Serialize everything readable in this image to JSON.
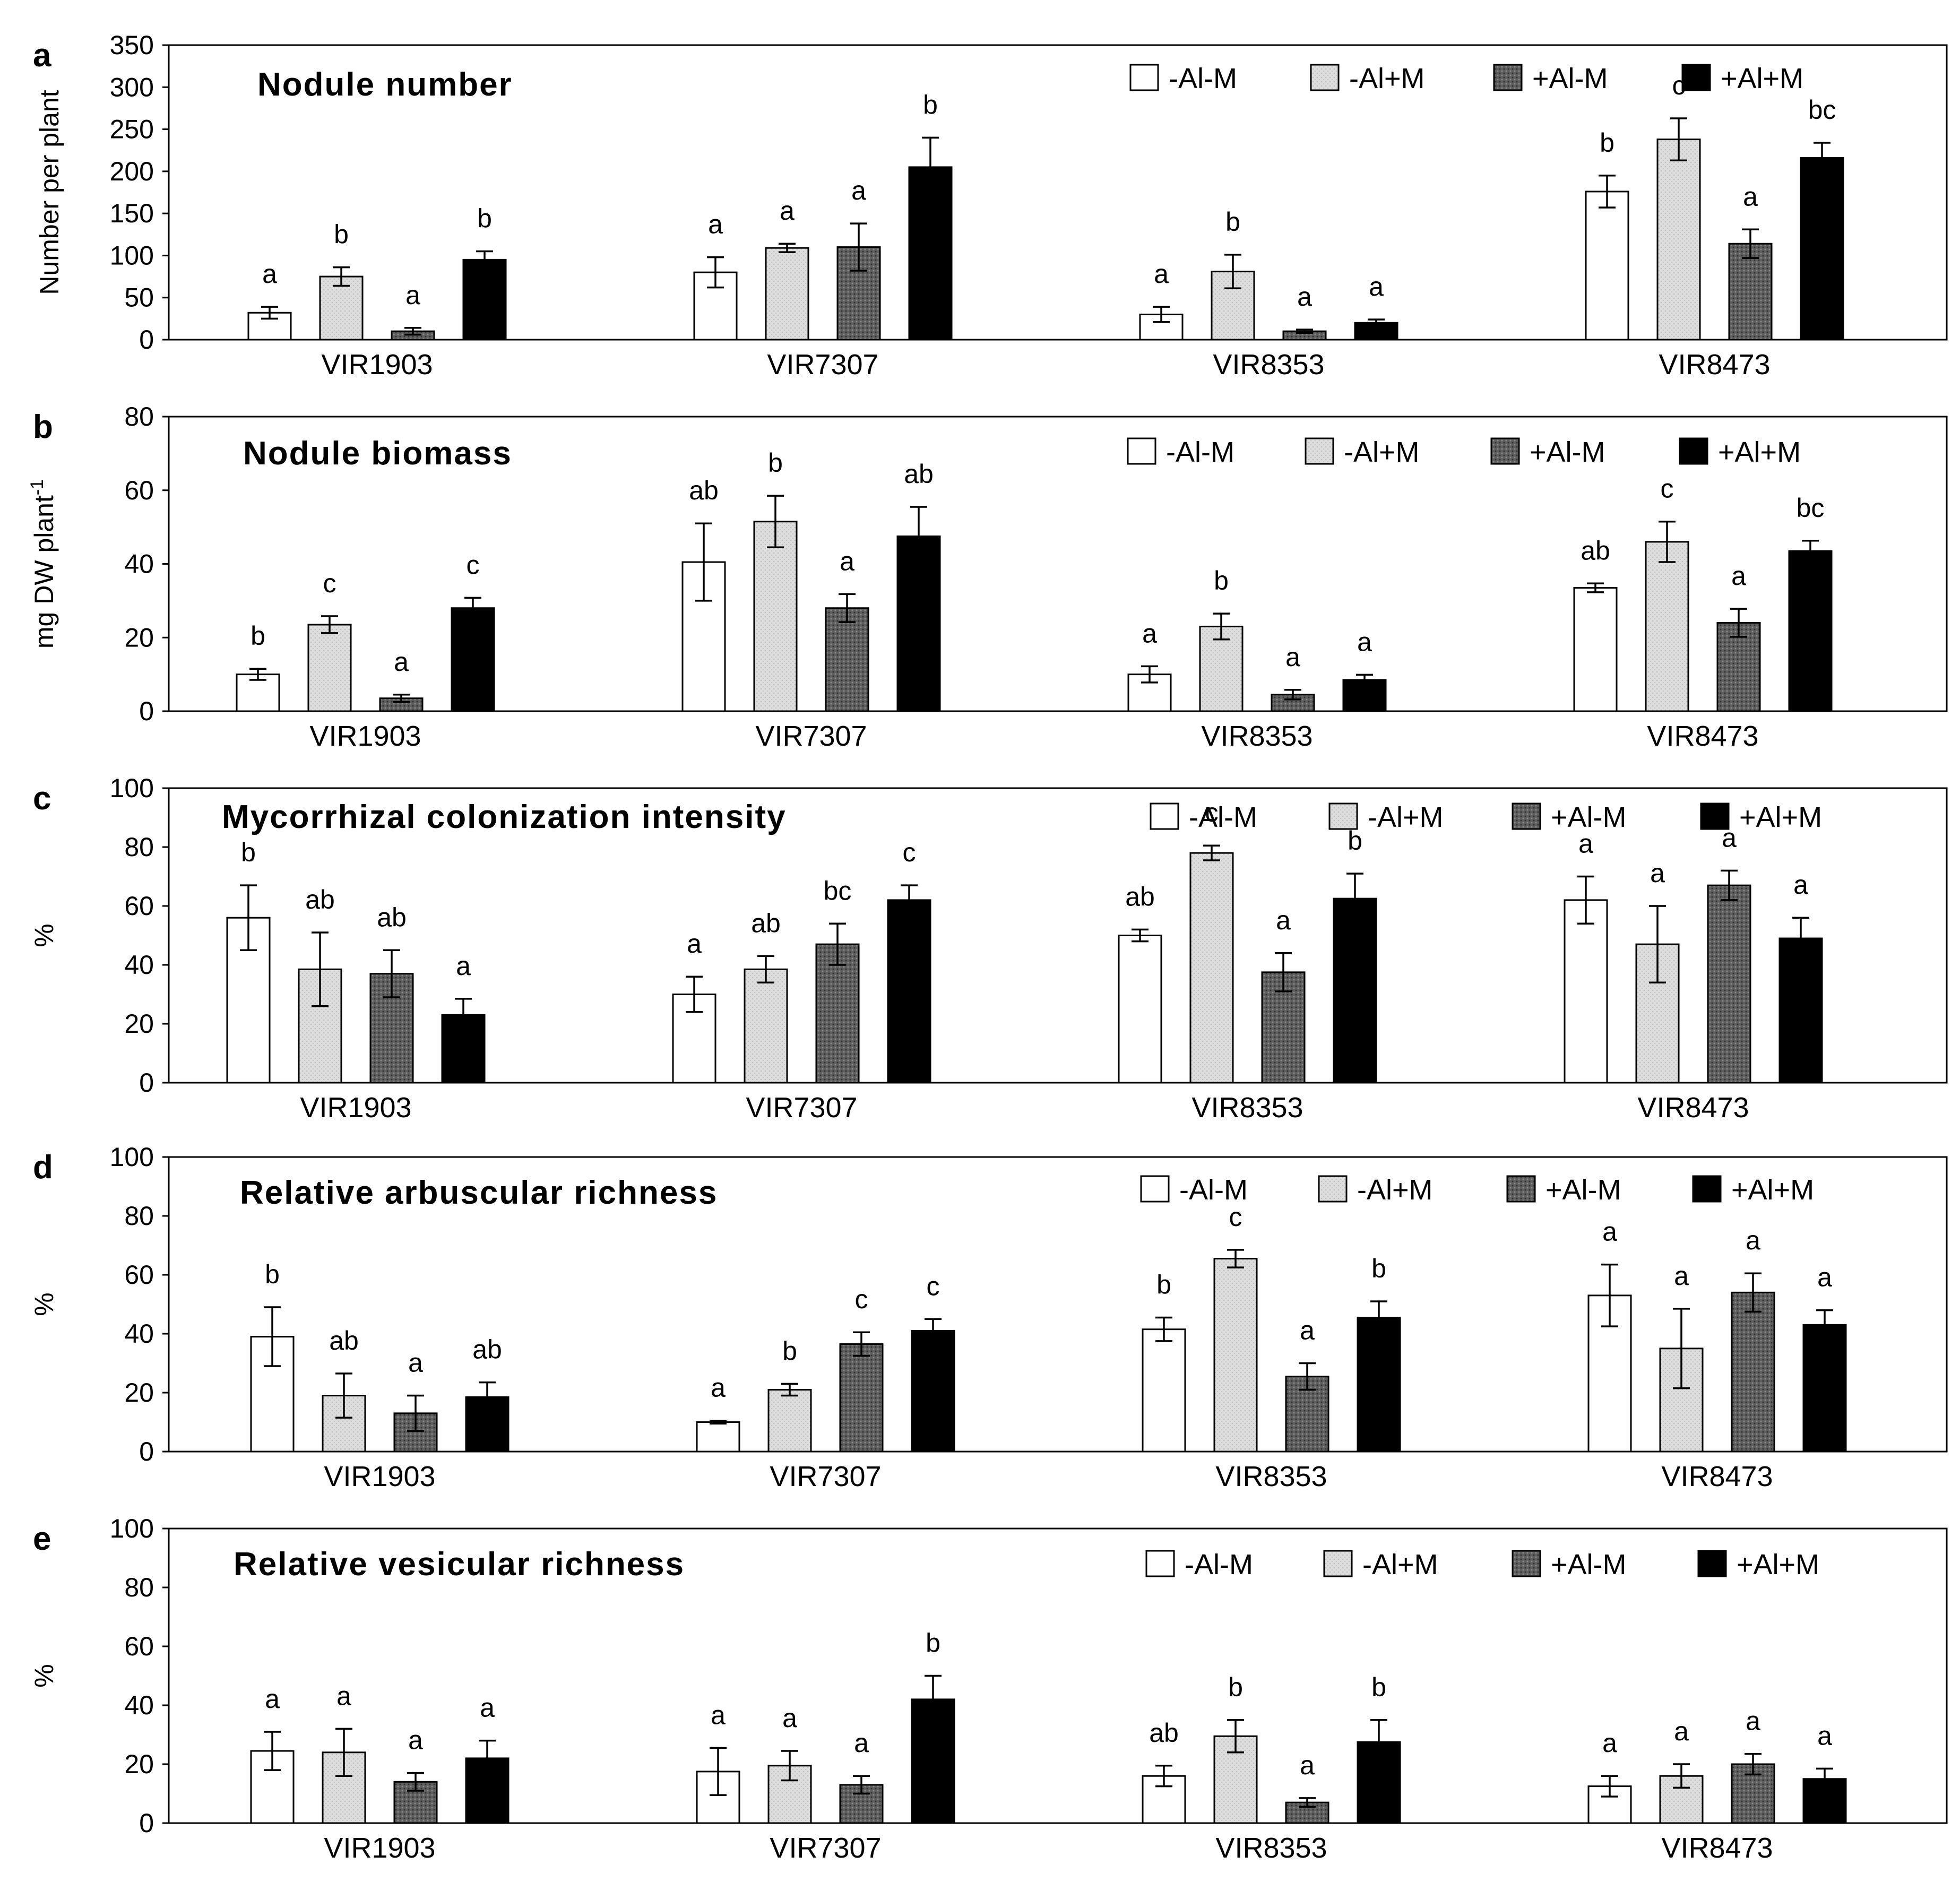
{
  "groups": [
    "VIR1903",
    "VIR7307",
    "VIR8353",
    "VIR8473"
  ],
  "legend": [
    "-Al-M",
    "-Al+M",
    "+Al-M",
    "+Al+M"
  ],
  "series_colors": [
    "#ffffff",
    "#dcdcdc",
    "#5a5a5a",
    "#000000"
  ],
  "chart_data": [
    {
      "type": "bar",
      "panel": "a",
      "title": "Nodule number",
      "ylabel": "Number per plant",
      "ylim": [
        0,
        350
      ],
      "yticks": [
        0,
        50,
        100,
        150,
        200,
        250,
        300,
        350
      ],
      "categories": [
        "VIR1903",
        "VIR7307",
        "VIR8353",
        "VIR8473"
      ],
      "series": [
        {
          "name": "-Al-M",
          "values": [
            32,
            80,
            30,
            176
          ],
          "errors": [
            7,
            18,
            9,
            19
          ],
          "letters": [
            "a",
            "a",
            "a",
            "b"
          ]
        },
        {
          "name": "-Al+M",
          "values": [
            75,
            109,
            81,
            238
          ],
          "errors": [
            11,
            5,
            20,
            25
          ],
          "letters": [
            "b",
            "a",
            "b",
            "c"
          ]
        },
        {
          "name": "+Al-M",
          "values": [
            10,
            110,
            10,
            114
          ],
          "errors": [
            4,
            28,
            2,
            17
          ],
          "letters": [
            "a",
            "a",
            "a",
            "a"
          ]
        },
        {
          "name": "+Al+M",
          "values": [
            95,
            205,
            20,
            216
          ],
          "errors": [
            10,
            35,
            4,
            18
          ],
          "letters": [
            "b",
            "b",
            "a",
            "bc"
          ]
        }
      ]
    },
    {
      "type": "bar",
      "panel": "b",
      "title": "Nodule biomass",
      "ylabel": "mg DW plant",
      "ylabel_sup": "-1",
      "ylim": [
        0,
        80
      ],
      "yticks": [
        0,
        20,
        40,
        60,
        80
      ],
      "categories": [
        "VIR1903",
        "VIR7307",
        "VIR8353",
        "VIR8473"
      ],
      "series": [
        {
          "name": "-Al-M",
          "values": [
            10,
            40.5,
            10,
            33.5
          ],
          "errors": [
            1.5,
            10.5,
            2.2,
            1.2
          ],
          "letters": [
            "b",
            "ab",
            "a",
            "ab"
          ]
        },
        {
          "name": "-Al+M",
          "values": [
            23.5,
            51.5,
            23,
            46
          ],
          "errors": [
            2.3,
            7,
            3.5,
            5.5
          ],
          "letters": [
            "c",
            "b",
            "b",
            "c"
          ]
        },
        {
          "name": "+Al-M",
          "values": [
            3.5,
            28,
            4.5,
            24
          ],
          "errors": [
            1,
            3.8,
            1.3,
            3.8
          ],
          "letters": [
            "a",
            "a",
            "a",
            "a"
          ]
        },
        {
          "name": "+Al+M",
          "values": [
            28,
            47.5,
            8.5,
            43.5
          ],
          "errors": [
            2.8,
            8,
            1.4,
            2.8
          ],
          "letters": [
            "c",
            "ab",
            "a",
            "bc"
          ]
        }
      ]
    },
    {
      "type": "bar",
      "panel": "c",
      "title": "Mycorrhizal colonization intensity",
      "ylabel": "%",
      "ylim": [
        0,
        100
      ],
      "yticks": [
        0,
        20,
        40,
        60,
        80,
        100
      ],
      "categories": [
        "VIR1903",
        "VIR7307",
        "VIR8353",
        "VIR8473"
      ],
      "series": [
        {
          "name": "-Al-M",
          "values": [
            56,
            30,
            50,
            62
          ],
          "errors": [
            11,
            6,
            2,
            8
          ],
          "letters": [
            "b",
            "a",
            "ab",
            "a"
          ]
        },
        {
          "name": "-Al+M",
          "values": [
            38.5,
            38.5,
            78,
            47
          ],
          "errors": [
            12.5,
            4.5,
            2.5,
            13
          ],
          "letters": [
            "ab",
            "ab",
            "c",
            "a"
          ]
        },
        {
          "name": "+Al-M",
          "values": [
            37,
            47,
            37.5,
            67
          ],
          "errors": [
            8,
            7,
            6.5,
            5
          ],
          "letters": [
            "ab",
            "bc",
            "a",
            "a"
          ]
        },
        {
          "name": "+Al+M",
          "values": [
            23,
            62,
            62.5,
            49
          ],
          "errors": [
            5.5,
            5,
            8.5,
            7
          ],
          "letters": [
            "a",
            "c",
            "b",
            "a"
          ]
        }
      ]
    },
    {
      "type": "bar",
      "panel": "d",
      "title": "Relative arbuscular richness",
      "ylabel": "%",
      "ylim": [
        0,
        100
      ],
      "yticks": [
        0,
        20,
        40,
        60,
        80,
        100
      ],
      "categories": [
        "VIR1903",
        "VIR7307",
        "VIR8353",
        "VIR8473"
      ],
      "series": [
        {
          "name": "-Al-M",
          "values": [
            39,
            10,
            41.5,
            53
          ],
          "errors": [
            10,
            0.5,
            4,
            10.5
          ],
          "letters": [
            "b",
            "a",
            "b",
            "a"
          ]
        },
        {
          "name": "-Al+M",
          "values": [
            19,
            21,
            65.5,
            35
          ],
          "errors": [
            7.5,
            2,
            3,
            13.5
          ],
          "letters": [
            "ab",
            "b",
            "c",
            "a"
          ]
        },
        {
          "name": "+Al-M",
          "values": [
            13,
            36.5,
            25.5,
            54
          ],
          "errors": [
            6,
            4,
            4.5,
            6.5
          ],
          "letters": [
            "a",
            "c",
            "a",
            "a"
          ]
        },
        {
          "name": "+Al+M",
          "values": [
            18.5,
            41,
            45.5,
            43
          ],
          "errors": [
            5,
            4,
            5.5,
            5
          ],
          "letters": [
            "ab",
            "c",
            "b",
            "a"
          ]
        }
      ]
    },
    {
      "type": "bar",
      "panel": "e",
      "title": "Relative vesicular richness",
      "ylabel": "%",
      "ylim": [
        0,
        100
      ],
      "yticks": [
        0,
        20,
        40,
        60,
        80,
        100
      ],
      "categories": [
        "VIR1903",
        "VIR7307",
        "VIR8353",
        "VIR8473"
      ],
      "series": [
        {
          "name": "-Al-M",
          "values": [
            24.5,
            17.5,
            16,
            12.5
          ],
          "errors": [
            6.5,
            8,
            3.5,
            3.5
          ],
          "letters": [
            "a",
            "a",
            "ab",
            "a"
          ]
        },
        {
          "name": "-Al+M",
          "values": [
            24,
            19.5,
            29.5,
            16
          ],
          "errors": [
            8,
            5,
            5.5,
            4
          ],
          "letters": [
            "a",
            "a",
            "b",
            "a"
          ]
        },
        {
          "name": "+Al-M",
          "values": [
            14,
            13,
            7,
            20
          ],
          "errors": [
            3,
            3,
            1.5,
            3.5
          ],
          "letters": [
            "a",
            "a",
            "a",
            "a"
          ]
        },
        {
          "name": "+Al+M",
          "values": [
            22,
            42,
            27.5,
            15
          ],
          "errors": [
            6,
            8,
            7.5,
            3.5
          ],
          "letters": [
            "a",
            "b",
            "b",
            "a"
          ]
        }
      ]
    }
  ]
}
